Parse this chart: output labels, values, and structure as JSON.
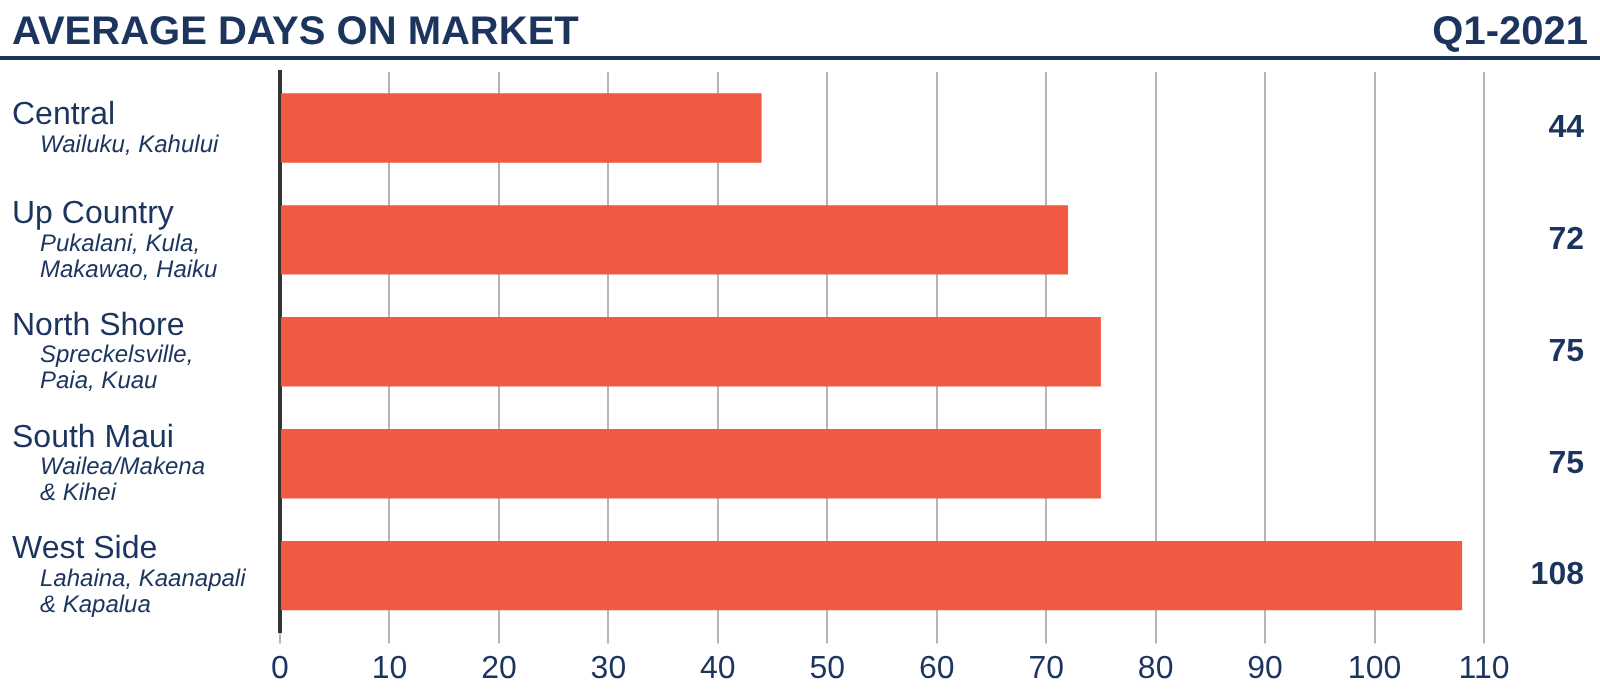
{
  "chart_data": {
    "type": "bar",
    "orientation": "horizontal",
    "title": "AVERAGE DAYS ON MARKET",
    "subtitle": "Q1-2021",
    "categories": [
      "Central\nWailuku, Kahului",
      "Up Country\nPukalani, Kula,\nMakawao, Haiku",
      "North Shore\nSpreckelsville,\nPaia, Kuau",
      "South Maui\nWailea/Makena\n& Kihei",
      "West Side\nLahaina, Kaanapali\n& Kapalua"
    ],
    "values": [
      44,
      72,
      75,
      75,
      108
    ],
    "color": "#f15a42",
    "xlim": [
      0,
      110
    ],
    "xticks": [
      0,
      10,
      20,
      30,
      40,
      50,
      60,
      70,
      80,
      90,
      100,
      110
    ],
    "grid": "x",
    "data_labels": true,
    "legend": false
  }
}
